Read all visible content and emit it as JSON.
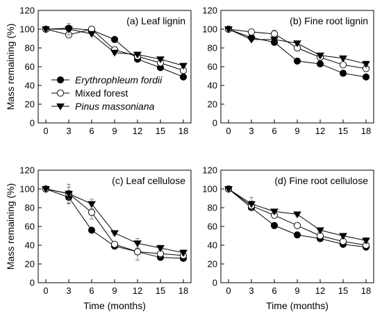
{
  "chart_data": [
    {
      "type": "line",
      "title": "(a)  Leaf  lignin",
      "xlabel": "",
      "ylabel": "Mass remaining (%)",
      "x": [
        0,
        3,
        6,
        9,
        12,
        15,
        18
      ],
      "xticks": [
        "0",
        "3",
        "6",
        "9",
        "12",
        "15",
        "18"
      ],
      "yticks": [
        "0",
        "20",
        "40",
        "60",
        "80",
        "100",
        "120"
      ],
      "xlim": [
        -1,
        19
      ],
      "ylim": [
        0,
        120
      ],
      "legend": "lower-left",
      "series": [
        {
          "name": "Erythrophleum fordii",
          "marker": "filled-circle",
          "values": [
            100,
            101,
            99,
            89,
            68,
            59,
            49
          ],
          "errors": [
            1.5,
            3,
            2,
            2.5,
            1.5,
            1.5,
            1.5
          ]
        },
        {
          "name": "Mixed forest",
          "marker": "open-circle",
          "values": [
            100,
            94,
            100,
            78,
            71,
            64,
            56
          ],
          "errors": [
            1.5,
            3,
            2,
            3,
            1.5,
            1.5,
            2
          ]
        },
        {
          "name": "Pinus massoniana",
          "marker": "filled-triangle",
          "values": [
            100,
            100,
            95,
            75,
            73,
            68,
            61
          ],
          "errors": [
            1.5,
            6,
            2,
            2,
            1.5,
            1.5,
            1.5
          ]
        }
      ]
    },
    {
      "type": "line",
      "title": "(b)  Fine root  lignin",
      "xlabel": "",
      "ylabel": "",
      "x": [
        0,
        3,
        6,
        9,
        12,
        15,
        18
      ],
      "xticks": [
        "0",
        "3",
        "6",
        "9",
        "12",
        "15",
        "18"
      ],
      "yticks": [
        "0",
        "20",
        "40",
        "60",
        "80",
        "100",
        "120"
      ],
      "xlim": [
        -1,
        19
      ],
      "ylim": [
        0,
        120
      ],
      "series": [
        {
          "name": "Erythrophleum fordii",
          "marker": "filled-circle",
          "values": [
            100,
            91,
            86,
            66,
            63,
            53,
            49
          ],
          "errors": [
            1,
            2,
            2,
            1.5,
            3,
            1.5,
            1.5
          ]
        },
        {
          "name": "Mixed forest",
          "marker": "open-circle",
          "values": [
            100,
            97,
            95,
            80,
            70,
            62,
            58
          ],
          "errors": [
            1,
            2,
            4,
            2,
            2,
            2,
            3
          ]
        },
        {
          "name": "Pinus massoniana",
          "marker": "filled-triangle",
          "values": [
            100,
            89,
            89,
            85,
            72,
            69,
            63
          ],
          "errors": [
            1,
            2,
            2,
            2,
            2,
            2,
            3
          ]
        }
      ]
    },
    {
      "type": "line",
      "title": "(c)  Leaf  cellulose",
      "xlabel": "Time (months)",
      "ylabel": "Mass remaining (%)",
      "x": [
        0,
        3,
        6,
        9,
        12,
        15,
        18
      ],
      "xticks": [
        "0",
        "3",
        "6",
        "9",
        "12",
        "15",
        "18"
      ],
      "yticks": [
        "0",
        "20",
        "40",
        "60",
        "80",
        "100",
        "120"
      ],
      "xlim": [
        -1,
        19
      ],
      "ylim": [
        0,
        120
      ],
      "series": [
        {
          "name": "Erythrophleum fordii",
          "marker": "filled-circle",
          "values": [
            100,
            91,
            56,
            39,
            33,
            27,
            26
          ],
          "errors": [
            1,
            7,
            2,
            2,
            3,
            2,
            2
          ]
        },
        {
          "name": "Mixed forest",
          "marker": "open-circle",
          "values": [
            100,
            95,
            75,
            41,
            33,
            31,
            29
          ],
          "errors": [
            1,
            10,
            7,
            2,
            9,
            4,
            3
          ]
        },
        {
          "name": "Pinus massoniana",
          "marker": "filled-triangle",
          "values": [
            100,
            95,
            84,
            53,
            42,
            37,
            32
          ],
          "errors": [
            1,
            7,
            5,
            2,
            5,
            3,
            3
          ]
        }
      ]
    },
    {
      "type": "line",
      "title": "(d)  Fine root  cellulose",
      "xlabel": "Time (months)",
      "ylabel": "",
      "x": [
        0,
        3,
        6,
        9,
        12,
        15,
        18
      ],
      "xticks": [
        "0",
        "3",
        "6",
        "9",
        "12",
        "15",
        "18"
      ],
      "yticks": [
        "0",
        "20",
        "40",
        "60",
        "80",
        "100",
        "120"
      ],
      "xlim": [
        -1,
        19
      ],
      "ylim": [
        0,
        120
      ],
      "series": [
        {
          "name": "Erythrophleum fordii",
          "marker": "filled-circle",
          "values": [
            100,
            80,
            61,
            51,
            47,
            41,
            38
          ],
          "errors": [
            1,
            3,
            3,
            3,
            2,
            2,
            2
          ]
        },
        {
          "name": "Mixed forest",
          "marker": "open-circle",
          "values": [
            100,
            82,
            72,
            61,
            50,
            44,
            40
          ],
          "errors": [
            1,
            5,
            3,
            3,
            2,
            2,
            2
          ]
        },
        {
          "name": "Pinus massoniana",
          "marker": "filled-triangle",
          "values": [
            100,
            84,
            76,
            73,
            56,
            50,
            45
          ],
          "errors": [
            1,
            7,
            2,
            2,
            2,
            2,
            3
          ]
        }
      ]
    }
  ]
}
